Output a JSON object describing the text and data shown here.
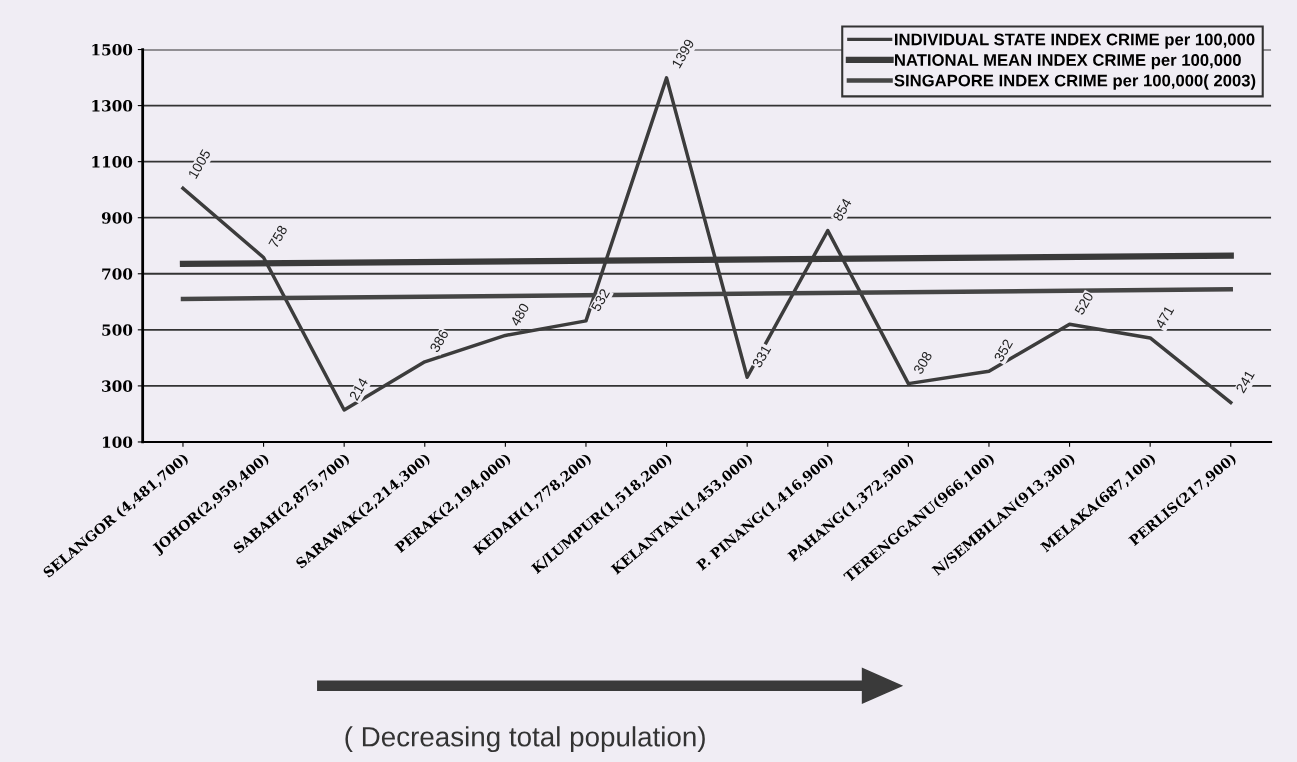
{
  "chart_data": {
    "type": "line",
    "categories": [
      "SELANGOR (4,481,700)",
      "JOHOR(2,959,400)",
      "SABAH(2,875,700)",
      "SARAWAK(2,214,300)",
      "PERAK(2,194,000)",
      "KEDAH(1,778,200)",
      "K/LUMPUR(1,518,200)",
      "KELANTAN(1,453,000)",
      "P. PINANG(1,416,900)",
      "PAHANG(1,372,500)",
      "TERENGGANU(966,100)",
      "N/SEMBILAN(913,300)",
      "MELAKA(687,100)",
      "PERLIS(217,900)"
    ],
    "series": [
      {
        "name": "INDIVIDUAL STATE INDEX CRIME per 100,000",
        "color": "#3c3c3c",
        "values": [
          1005,
          758,
          214,
          386,
          480,
          532,
          1399,
          331,
          854,
          308,
          352,
          520,
          471,
          241
        ],
        "value_labels": [
          "1005",
          "758",
          "214",
          "386",
          "480",
          "532",
          "1399",
          "331",
          "854",
          "308",
          "352",
          "520",
          "471",
          "241"
        ]
      },
      {
        "name": "NATIONAL MEAN INDEX CRIME per 100,000",
        "color": "#3a3a3a",
        "x": [
          "SELANGOR (4,481,700)",
          "PERLIS(217,900)"
        ],
        "values": [
          735,
          765
        ]
      },
      {
        "name": "SINGAPORE INDEX CRIME per 100,000( 2003)",
        "color": "#454545",
        "x": [
          "SELANGOR (4,481,700)",
          "PERLIS(217,900)"
        ],
        "values": [
          610,
          645
        ]
      }
    ],
    "ylim": [
      100,
      1500
    ],
    "yticks": [
      100,
      300,
      500,
      700,
      900,
      1100,
      1300,
      1500
    ],
    "grid": "y",
    "legend": "top right",
    "marker": "none",
    "line_style": "solid",
    "annotations": [
      "( Decreasing total population)"
    ]
  }
}
